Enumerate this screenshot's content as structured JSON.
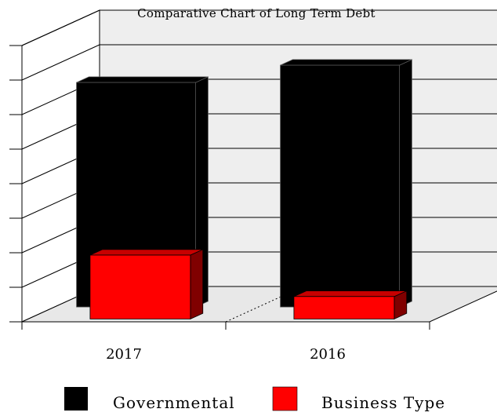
{
  "chart_data": {
    "type": "bar",
    "style": "3d-clustered",
    "title": "Comparative Chart of Long Term Debt",
    "xlabel": "",
    "ylabel": "",
    "categories": [
      "2017",
      "2016"
    ],
    "series": [
      {
        "name": "Governmental",
        "color": "#000000",
        "values": [
          6.5,
          7.0
        ]
      },
      {
        "name": "Business Type",
        "color": "#ff0000",
        "values": [
          1.85,
          0.65
        ]
      }
    ],
    "ylim": [
      0,
      8
    ],
    "grid": true,
    "gridlines": 8,
    "legend_position": "bottom",
    "tick_labels_shown": false
  }
}
